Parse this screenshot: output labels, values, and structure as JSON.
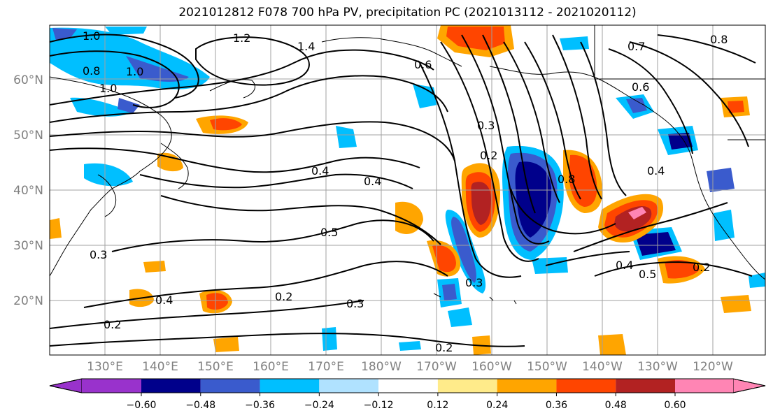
{
  "title": "2021012812 F078 700 hPa PV, precipitation PC (2021013112 - 2021020112)",
  "lat_labels": [
    "60°N",
    "50°N",
    "40°N",
    "30°N",
    "20°N"
  ],
  "lon_labels": [
    "130°E",
    "140°E",
    "150°E",
    "160°E",
    "170°E",
    "180°W",
    "170°W",
    "160°W",
    "150°W",
    "140°W",
    "130°W",
    "120°W"
  ],
  "colorbar": {
    "ticks": [
      "−0.60",
      "−0.48",
      "−0.36",
      "−0.24",
      "−0.12",
      "0.12",
      "0.24",
      "0.36",
      "0.48",
      "0.60"
    ],
    "colors": [
      "#9932cc",
      "#00008b",
      "#3a5bcd",
      "#00bfff",
      "#b0e2ff",
      "#ffffff",
      "#ffeb8a",
      "#ffa500",
      "#ff4500",
      "#b22222",
      "#ff85b4",
      "#ff85b4"
    ]
  },
  "contour_labels": [
    "1.0",
    "1.2",
    "1.4",
    "0.8",
    "1.0",
    "1.0",
    "0.4",
    "0.4",
    "0.5",
    "0.2",
    "0.3",
    "0.2",
    "0.4",
    "0.2",
    "0.3",
    "0.3",
    "0.2",
    "0.4",
    "0.5",
    "0.2",
    "0.7",
    "0.8",
    "0.6",
    "0.4",
    "0.8",
    "0.3",
    "0.6"
  ]
}
